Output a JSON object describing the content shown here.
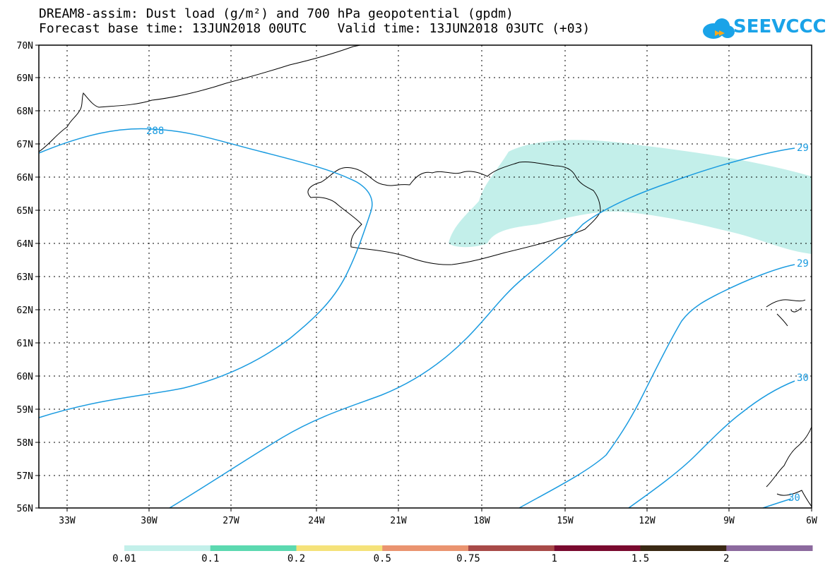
{
  "title_line1": "DREAM8-assim: Dust load (g/m²) and 700 hPa geopotential (gpdm)",
  "title_line2": "Forecast base time: 13JUN2018 00UTC    Valid time: 13JUN2018 03UTC (+03)",
  "logo_text": "SEEVCCC",
  "map": {
    "lat_labels": [
      "70N",
      "69N",
      "68N",
      "67N",
      "66N",
      "65N",
      "64N",
      "63N",
      "62N",
      "61N",
      "60N",
      "59N",
      "58N",
      "57N",
      "56N"
    ],
    "lon_labels": [
      "33W",
      "30W",
      "27W",
      "24W",
      "21W",
      "18W",
      "15W",
      "12W",
      "9W",
      "6W"
    ],
    "contour_labels": [
      "288",
      "29",
      "29",
      "30",
      "30"
    ],
    "dust_color": "#c3efea",
    "contour_color": "#1a9be0"
  },
  "colorbar": {
    "colors": [
      "#c3f0ea",
      "#5cd9b0",
      "#f5e27a",
      "#ea9470",
      "#a84a48",
      "#7a0a2f",
      "#3a2914",
      "#8c6a9e"
    ],
    "labels": [
      "0.01",
      "0.1",
      "0.2",
      "0.5",
      "0.75",
      "1",
      "1.5",
      "2"
    ]
  }
}
